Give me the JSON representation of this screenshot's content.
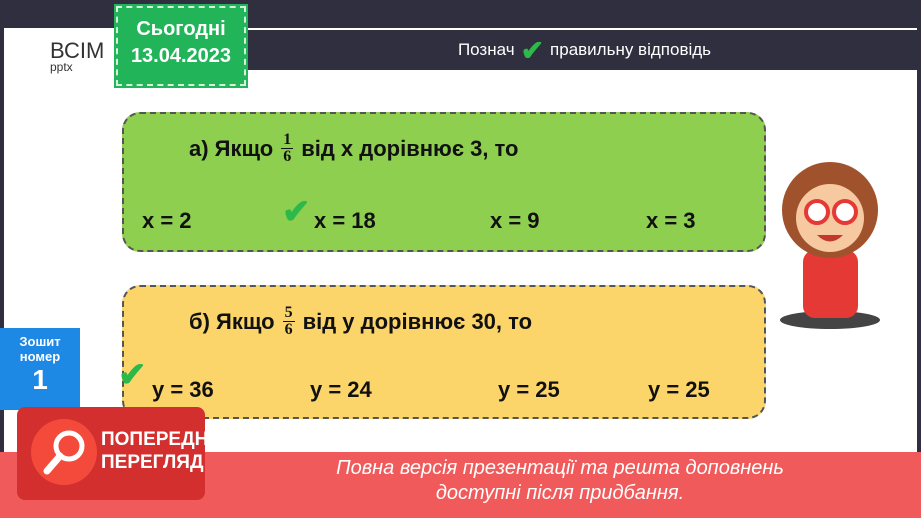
{
  "logo": {
    "brand": "ВСІМ",
    "sub": "pptx"
  },
  "date": {
    "label": "Сьогодні",
    "value": "13.04.2023"
  },
  "header": {
    "before": "Познач",
    "after": "правильну відповідь",
    "icon": "checkmark-icon"
  },
  "task_a": {
    "prefix": "а) Якщо",
    "num": "1",
    "den": "6",
    "suffix": "від x дорівнює 3, то",
    "answers": [
      "x = 2",
      "x = 18",
      "x = 9",
      "x = 3"
    ],
    "checked": 1
  },
  "task_b": {
    "prefix": "б) Якщо",
    "num": "5",
    "den": "6",
    "suffix": "від y дорівнює 30, то",
    "answers": [
      "y = 36",
      "y = 24",
      "y = 25",
      "y = 25"
    ],
    "checked": 0
  },
  "notebook": {
    "line1": "Зошит",
    "line2": "номер",
    "number": "1"
  },
  "preview": {
    "line1": "ПОПЕРЕДНІЙ",
    "line2": "ПЕРЕГЛЯД"
  },
  "banner": {
    "line1": "Повна версія презентації та решта доповнень",
    "line2": "доступні після придбання."
  },
  "colors": {
    "green": "#8fcf4f",
    "yellow": "#fbd46a",
    "red": "#f05a5a",
    "blue": "#1e88e5"
  }
}
